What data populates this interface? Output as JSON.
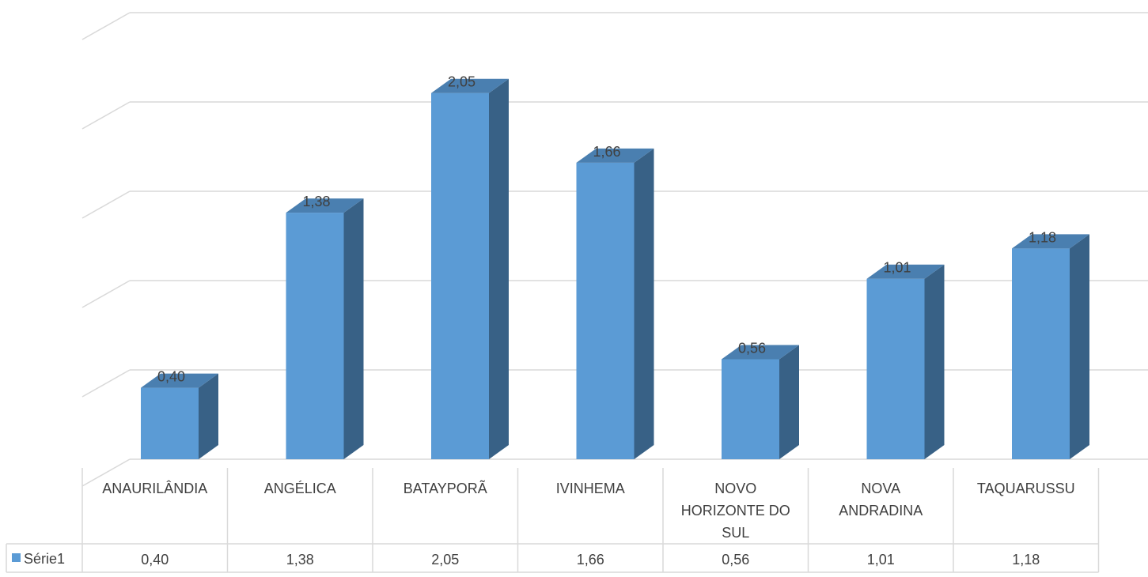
{
  "chart_data": {
    "type": "bar",
    "style": "3d-column-with-data-table",
    "title": "",
    "xlabel": "",
    "ylabel": "",
    "categories": [
      "ANAURILÂNDIA",
      "ANGÉLICA",
      "BATAYPORÃ",
      "IVINHEMA",
      "NOVO HORIZONTE DO SUL",
      "NOVA ANDRADINA",
      "TAQUARUSSU"
    ],
    "category_lines": [
      [
        "ANAURILÂNDIA"
      ],
      [
        "ANGÉLICA"
      ],
      [
        "BATAYPORÃ"
      ],
      [
        "IVINHEMA"
      ],
      [
        "NOVO",
        "HORIZONTE DO",
        "SUL"
      ],
      [
        "NOVA",
        "ANDRADINA"
      ],
      [
        "TAQUARUSSU"
      ]
    ],
    "series": [
      {
        "name": "Série1",
        "values": [
          0.4,
          1.38,
          2.05,
          1.66,
          0.56,
          1.01,
          1.18
        ],
        "labels": [
          "0,40",
          "1,38",
          "2,05",
          "1,66",
          "0,56",
          "1,01",
          "1,18"
        ],
        "color": "#5b9bd5",
        "side_color": "#386186",
        "top_color": "#4a7fb0"
      }
    ],
    "ylim": [
      0,
      2.5
    ],
    "grid": true,
    "gridline_color": "#d9d9d9",
    "legend": "data-table-left"
  }
}
